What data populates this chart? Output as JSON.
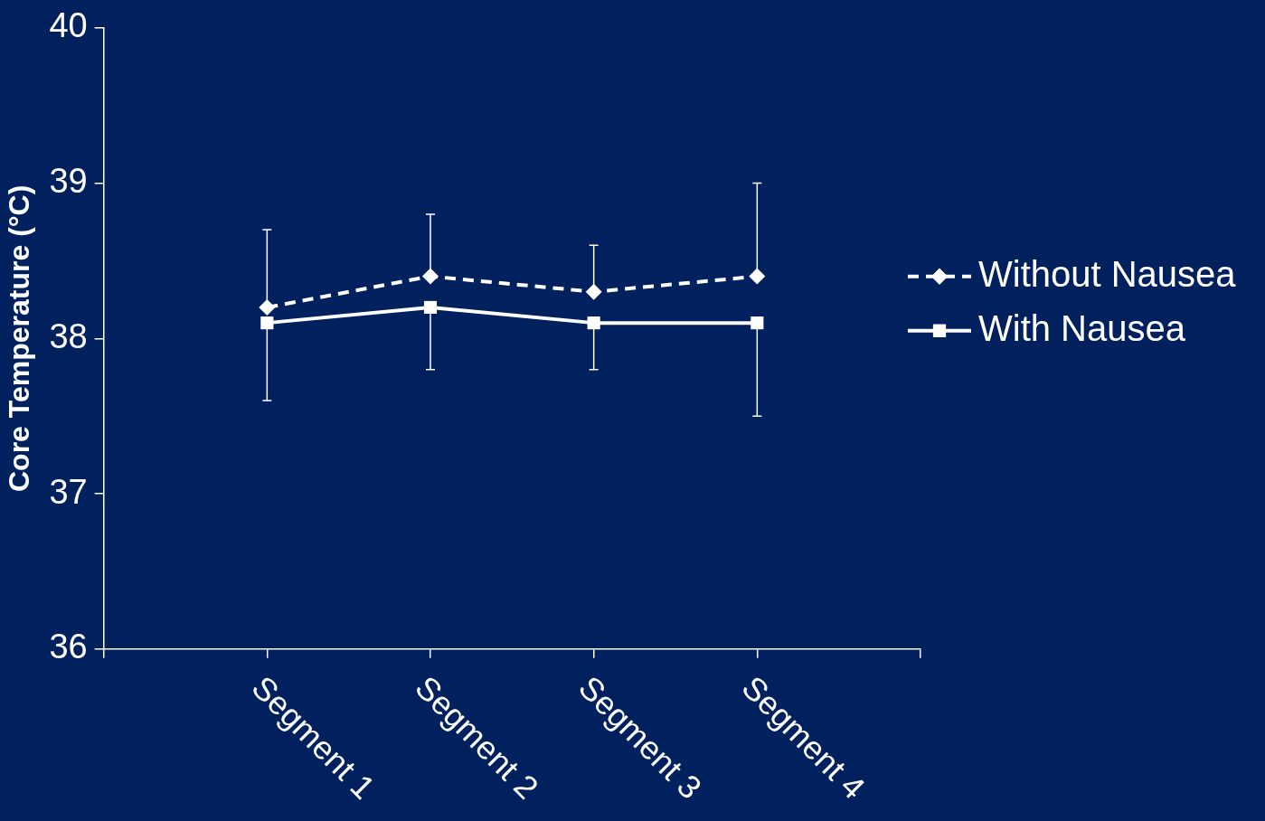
{
  "chart_data": {
    "type": "line",
    "ylabel": "Core Temperature (°C)",
    "categories": [
      "Segment 1",
      "Segment 2",
      "Segment 3",
      "Segment 4"
    ],
    "ylim": [
      36,
      40
    ],
    "yticks": [
      36,
      37,
      38,
      39,
      40
    ],
    "grid": false,
    "legend": "right",
    "series": [
      {
        "name": "Without Nausea",
        "color": "#ffffff",
        "values": [
          38.2,
          38.4,
          38.3,
          38.4
        ],
        "marker": "diamond",
        "line_style": "dashed",
        "errors": [
          [
            38.2,
            38.7
          ],
          [
            38.4,
            38.8
          ],
          [
            38.3,
            38.6
          ],
          [
            38.4,
            39.0
          ]
        ]
      },
      {
        "name": "With Nausea",
        "color": "#ffffff",
        "values": [
          38.1,
          38.2,
          38.1,
          38.1
        ],
        "marker": "square",
        "line_style": "solid",
        "errors": [
          [
            37.6,
            38.1
          ],
          [
            37.8,
            38.2
          ],
          [
            37.8,
            38.1
          ],
          [
            37.5,
            38.1
          ]
        ]
      }
    ]
  }
}
